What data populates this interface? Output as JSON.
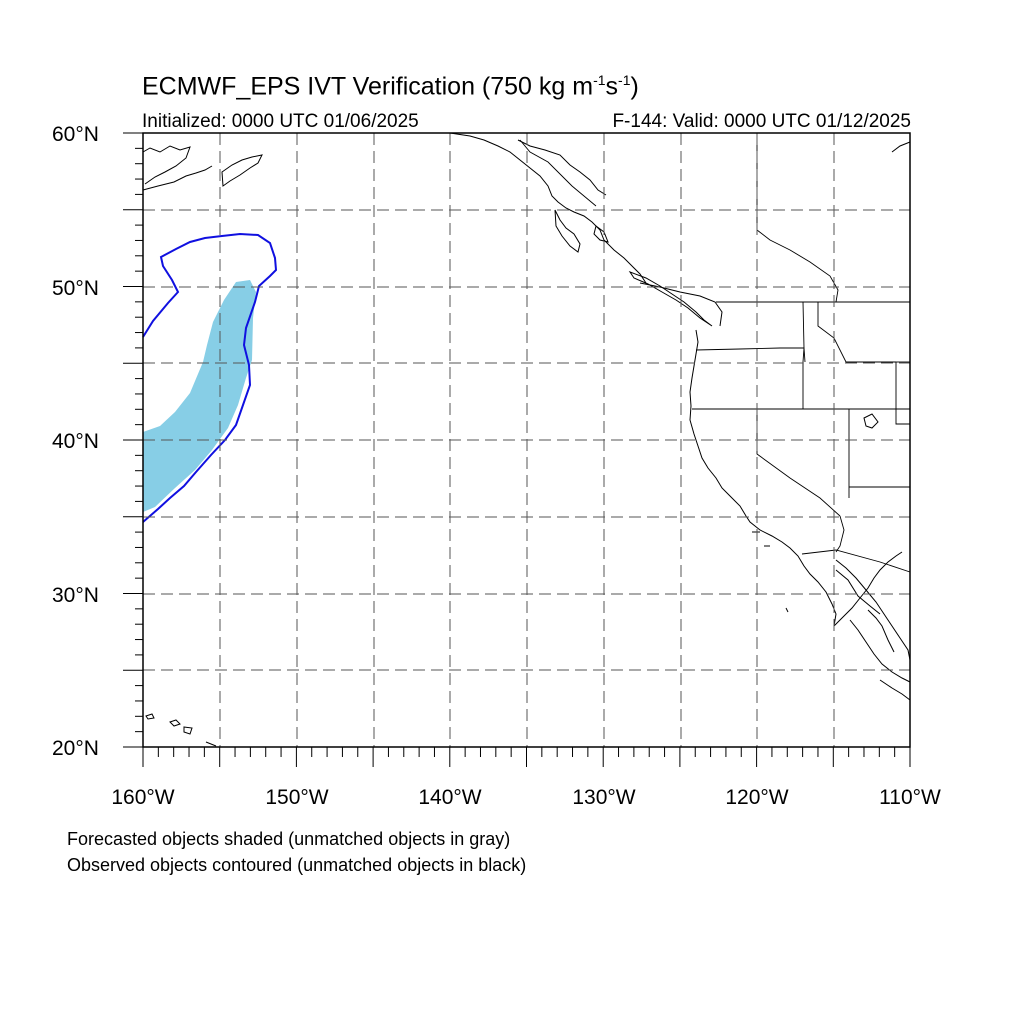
{
  "header": {
    "title_main": "ECMWF_EPS IVT Verification (750 kg m",
    "title_sup1": "-1",
    "title_mid": "s",
    "title_sup2": "-1",
    "title_end": ")",
    "initialized": "Initialized: 0000 UTC 01/06/2025",
    "valid": "F-144: Valid: 0000 UTC 01/12/2025"
  },
  "map": {
    "lon_labels": [
      "160°W",
      "150°W",
      "140°W",
      "130°W",
      "120°W",
      "110°W"
    ],
    "lat_labels": [
      "60°N",
      "50°N",
      "40°N",
      "30°N",
      "20°N"
    ],
    "lon_range": [
      -160,
      -110
    ],
    "lat_range": [
      20,
      60
    ],
    "grid_spacing_deg": 5,
    "grid": true,
    "forecast_fill_color": "#87CEE6",
    "observed_contour_color": "#1010E0",
    "coastline_color": "#000000"
  },
  "notes": {
    "line1": "Forecasted objects shaded (unmatched objects in gray)",
    "line2": "Observed objects contoured (unmatched objects in black)"
  }
}
